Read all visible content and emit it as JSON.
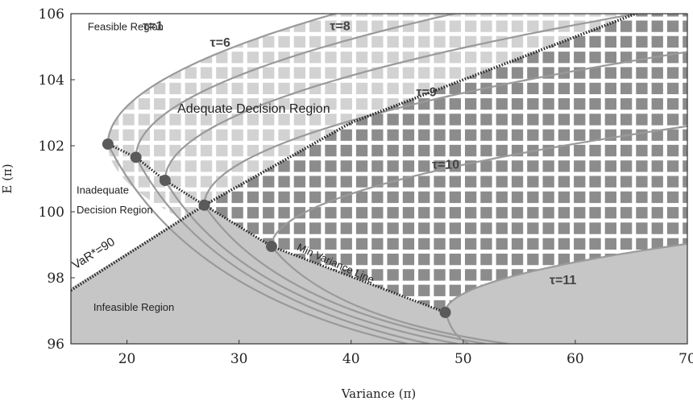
{
  "chart_data": {
    "type": "line",
    "title": "",
    "xlabel": "Variance (π)",
    "ylabel": "E (π)",
    "xlim": [
      15,
      70
    ],
    "ylim": [
      96,
      106
    ],
    "x_ticks": [
      20,
      30,
      40,
      50,
      60,
      70
    ],
    "y_ticks": [
      96,
      98,
      100,
      102,
      104,
      106
    ],
    "x_tick_labels": [
      "20",
      "30",
      "40",
      "50",
      "60",
      "70"
    ],
    "y_tick_labels": [
      "96",
      "98",
      "100",
      "102",
      "104",
      "106"
    ],
    "grid": true,
    "colors": {
      "feasible_fill": "#d2d2d2",
      "dark_fill": "#8c8c8c",
      "infeasible_fill": "#c6c6c6",
      "grid_line": "#ffffff",
      "curve": "#9a9a9a",
      "point": "#5a5a5a",
      "dotted_line": "#222222"
    },
    "regions": [
      {
        "label": "Feasible Region",
        "x": 16.5,
        "y": 105.5
      },
      {
        "label": "Adequate Decision Region",
        "x": 24.5,
        "y": 103.0
      },
      {
        "label": "Inadequate",
        "x": 15.5,
        "y": 100.55
      },
      {
        "label": "Decision Region",
        "x": 15.5,
        "y": 99.95
      },
      {
        "label": "Infeasible Region",
        "x": 17.0,
        "y": 97.0
      }
    ],
    "frontier_curves": [
      {
        "name": "τ=1",
        "vertex_x": 18.3,
        "vertex_y": 102.05,
        "a": 1.3,
        "label_x": 21.4,
        "label_y": 105.5
      },
      {
        "name": "τ=6",
        "vertex_x": 20.8,
        "vertex_y": 101.65,
        "a": 1.5,
        "label_x": 27.4,
        "label_y": 105.0
      },
      {
        "name": "τ=8",
        "vertex_x": 23.4,
        "vertex_y": 100.95,
        "a": 1.65,
        "label_x": 38.1,
        "label_y": 105.5
      },
      {
        "name": "τ=9",
        "vertex_x": 26.9,
        "vertex_y": 100.2,
        "a": 2.0,
        "label_x": 45.8,
        "label_y": 103.5
      },
      {
        "name": "τ=10",
        "vertex_x": 32.9,
        "vertex_y": 98.95,
        "a": 2.8,
        "label_x": 47.2,
        "label_y": 101.3
      },
      {
        "name": "τ=11",
        "vertex_x": 48.4,
        "vertex_y": 96.95,
        "a": 5.0,
        "label_x": 57.7,
        "label_y": 97.8
      }
    ],
    "lower_branch_ends": [
      {
        "x": 45.0,
        "y": 96.0
      },
      {
        "x": 47.0,
        "y": 96.0
      },
      {
        "x": 49.5,
        "y": 96.0
      },
      {
        "x": 52.0,
        "y": 96.0
      },
      {
        "x": 54.0,
        "y": 96.0
      },
      {
        "x": 50.5,
        "y": 96.0
      }
    ],
    "min_variance_points": [
      {
        "x": 18.3,
        "y": 102.05
      },
      {
        "x": 20.8,
        "y": 101.65
      },
      {
        "x": 23.4,
        "y": 100.95
      },
      {
        "x": 26.9,
        "y": 100.2
      },
      {
        "x": 32.9,
        "y": 98.95
      },
      {
        "x": 48.4,
        "y": 96.95
      }
    ],
    "min_variance_line_label": "Min Variance Line",
    "var_line": {
      "label": "VaR*=90",
      "points": [
        {
          "x": 15.0,
          "y": 97.62
        },
        {
          "x": 26.9,
          "y": 100.2
        },
        {
          "x": 40.0,
          "y": 102.7
        },
        {
          "x": 70.0,
          "y": 106.6
        }
      ],
      "label_x": 15.4,
      "label_y": 98.25
    }
  }
}
